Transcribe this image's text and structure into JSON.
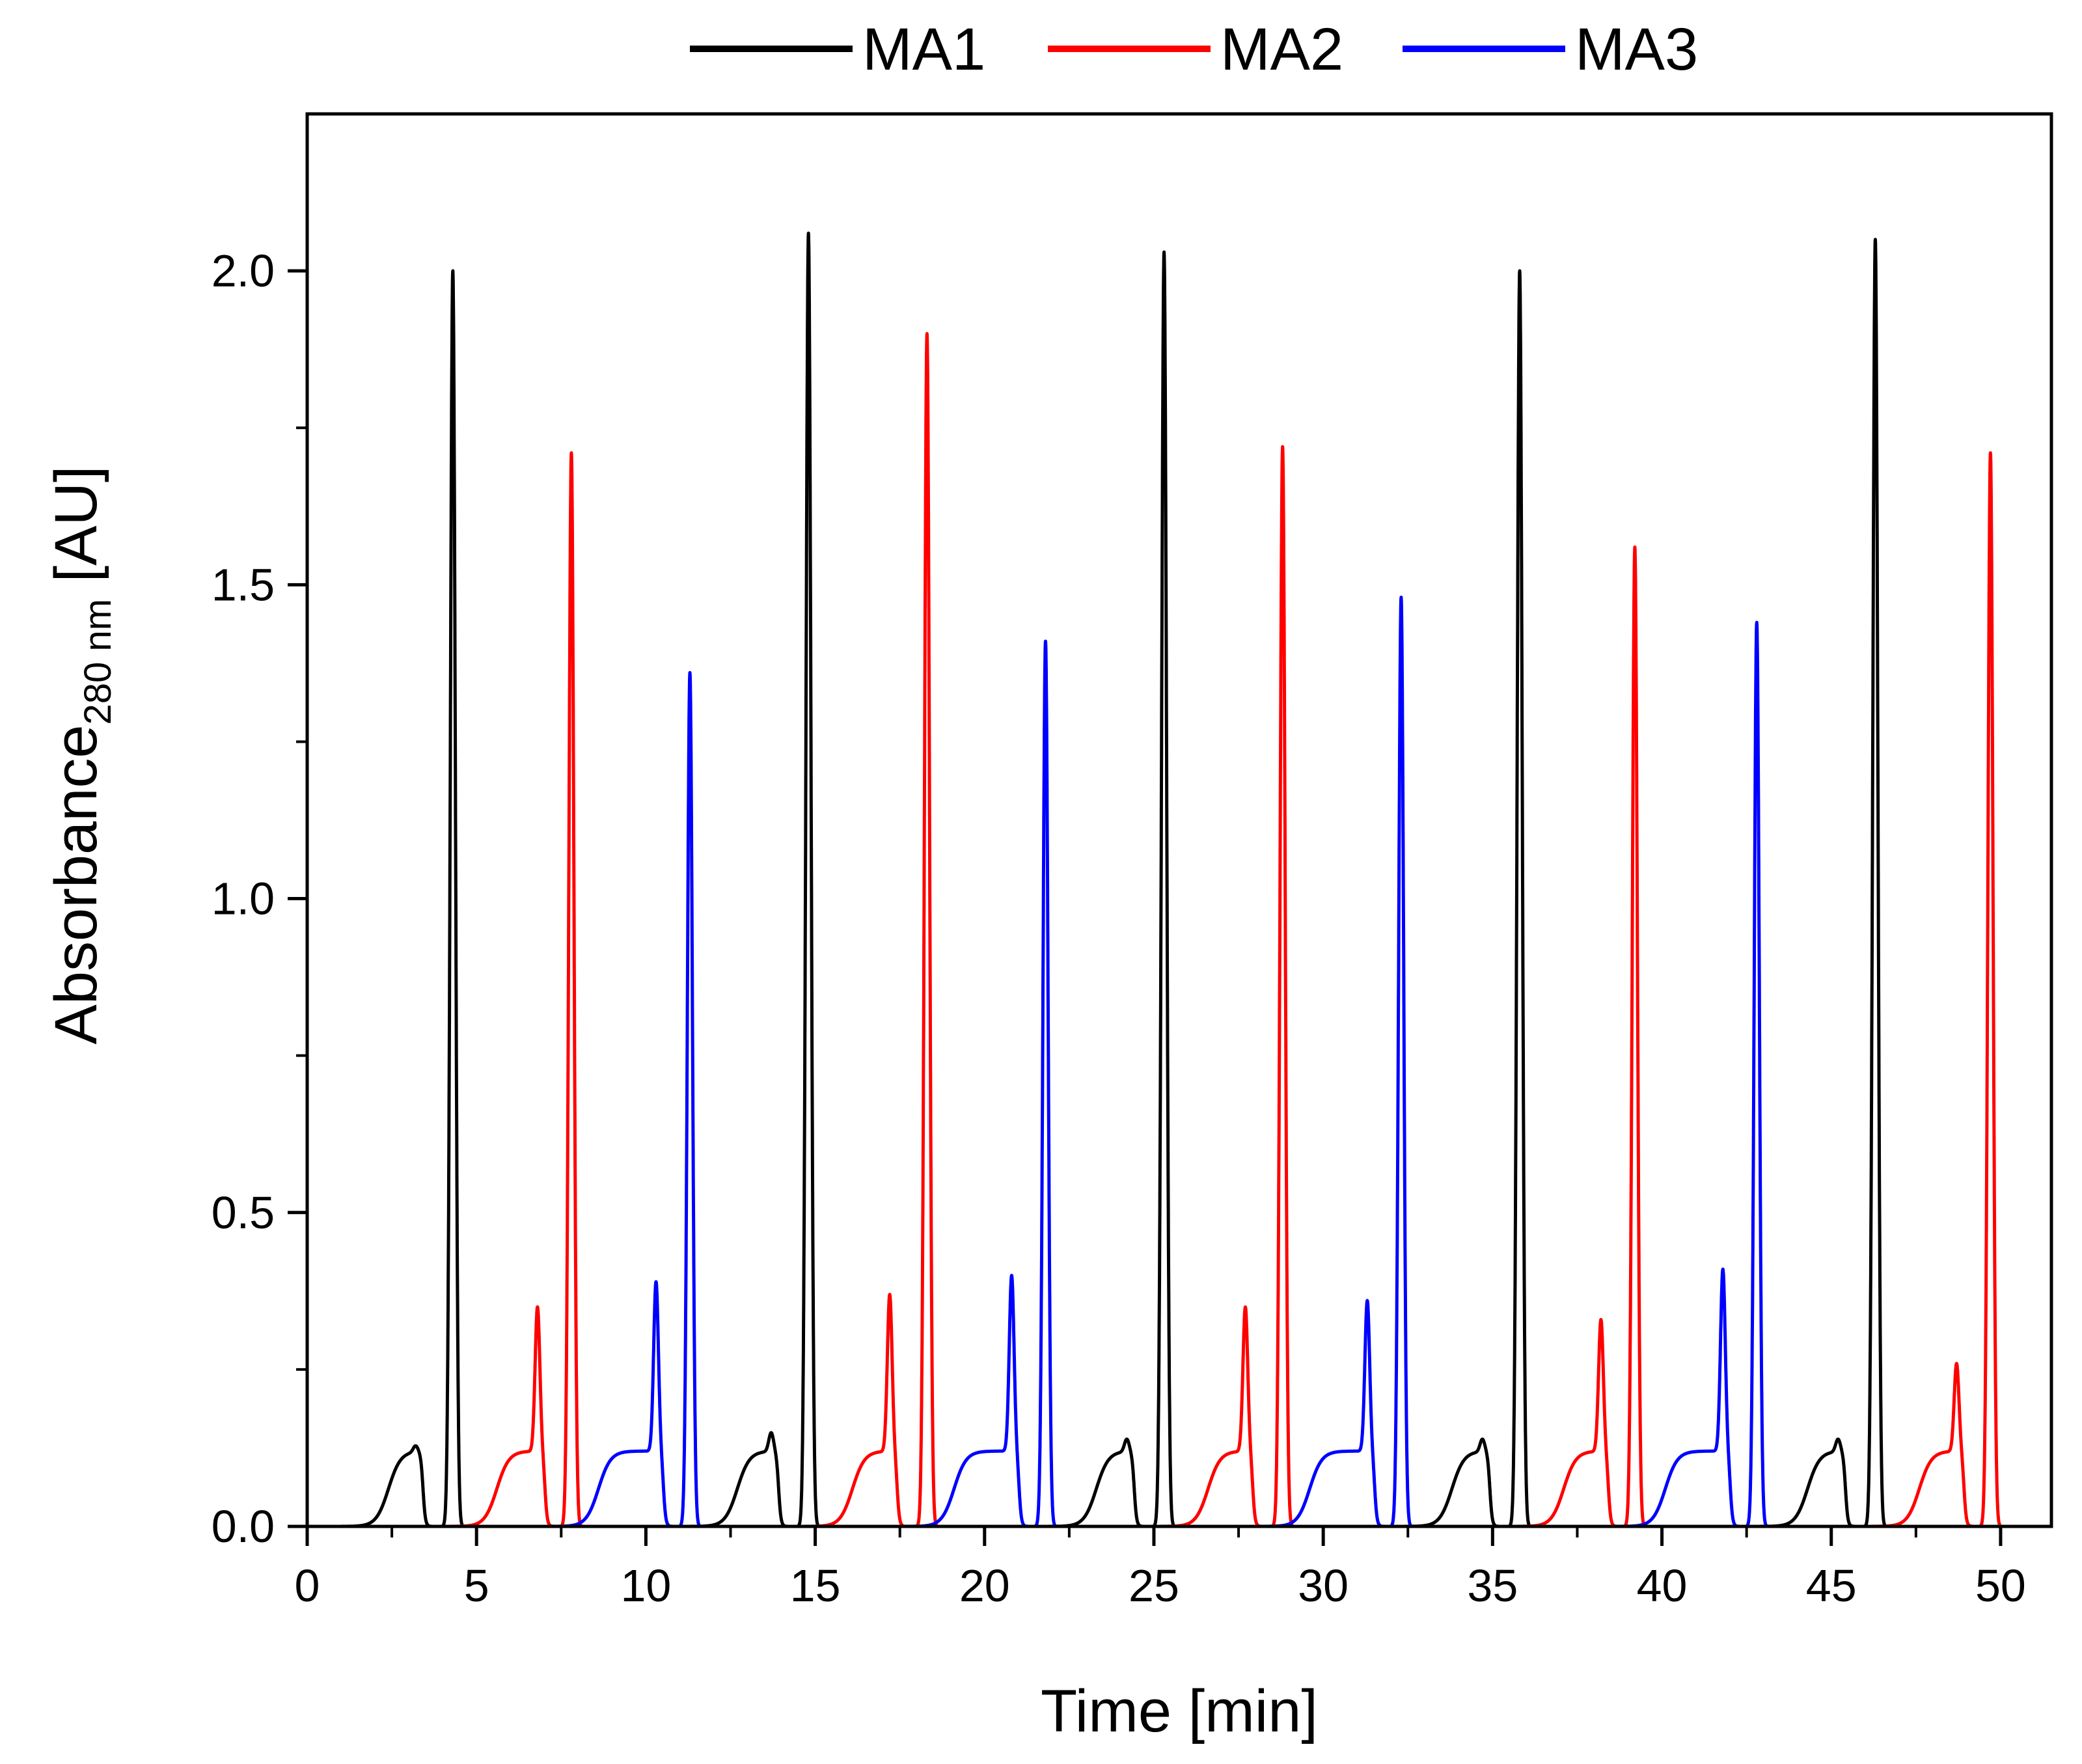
{
  "chart_data": {
    "type": "line",
    "xlabel": "Time [min]",
    "ylabel": {
      "main": "Absorbance",
      "subscript": "280 nm",
      "unit": " [AU]"
    },
    "xlim": [
      0,
      51.5
    ],
    "ylim": [
      0,
      2.25
    ],
    "xticks": [
      0,
      5,
      10,
      15,
      20,
      25,
      30,
      35,
      40,
      45,
      50
    ],
    "xtick_labels": [
      "0",
      "5",
      "10",
      "15",
      "20",
      "25",
      "30",
      "35",
      "40",
      "45",
      "50"
    ],
    "yticks": [
      0.0,
      0.5,
      1.0,
      1.5,
      2.0
    ],
    "ytick_labels": [
      "0.0",
      "0.5",
      "1.0",
      "1.5",
      "2.0"
    ],
    "grid": false,
    "legend_position": "top",
    "series": [
      {
        "name": "MA1",
        "color": "#000000",
        "peaks": [
          {
            "start": 1.7,
            "shoulder_x": 3.2,
            "shoulder_y": 0.13,
            "peak_x": 4.3,
            "peak_y": 2.0
          },
          {
            "start": 12.0,
            "shoulder_x": 13.7,
            "shoulder_y": 0.15,
            "peak_x": 14.8,
            "peak_y": 2.06
          },
          {
            "start": 22.6,
            "shoulder_x": 24.2,
            "shoulder_y": 0.14,
            "peak_x": 25.3,
            "peak_y": 2.03
          },
          {
            "start": 33.1,
            "shoulder_x": 34.7,
            "shoulder_y": 0.14,
            "peak_x": 35.8,
            "peak_y": 2.0
          },
          {
            "start": 43.6,
            "shoulder_x": 45.2,
            "shoulder_y": 0.14,
            "peak_x": 46.3,
            "peak_y": 2.05
          }
        ]
      },
      {
        "name": "MA2",
        "color": "#ff0000",
        "peaks": [
          {
            "start": 4.9,
            "shoulder_x": 6.8,
            "shoulder_y": 0.35,
            "peak_x": 7.8,
            "peak_y": 1.71
          },
          {
            "start": 15.4,
            "shoulder_x": 17.2,
            "shoulder_y": 0.37,
            "peak_x": 18.3,
            "peak_y": 1.9
          },
          {
            "start": 25.9,
            "shoulder_x": 27.7,
            "shoulder_y": 0.35,
            "peak_x": 28.8,
            "peak_y": 1.72
          },
          {
            "start": 36.4,
            "shoulder_x": 38.2,
            "shoulder_y": 0.33,
            "peak_x": 39.2,
            "peak_y": 1.56
          },
          {
            "start": 46.9,
            "shoulder_x": 48.7,
            "shoulder_y": 0.26,
            "peak_x": 49.7,
            "peak_y": 1.71
          }
        ]
      },
      {
        "name": "MA3",
        "color": "#0000ff",
        "peaks": [
          {
            "start": 7.9,
            "shoulder_x": 10.3,
            "shoulder_y": 0.39,
            "peak_x": 11.3,
            "peak_y": 1.36
          },
          {
            "start": 18.4,
            "shoulder_x": 20.8,
            "shoulder_y": 0.4,
            "peak_x": 21.8,
            "peak_y": 1.41
          },
          {
            "start": 28.9,
            "shoulder_x": 31.3,
            "shoulder_y": 0.36,
            "peak_x": 32.3,
            "peak_y": 1.48
          },
          {
            "start": 39.4,
            "shoulder_x": 41.8,
            "shoulder_y": 0.41,
            "peak_x": 42.8,
            "peak_y": 1.44
          }
        ]
      }
    ]
  }
}
